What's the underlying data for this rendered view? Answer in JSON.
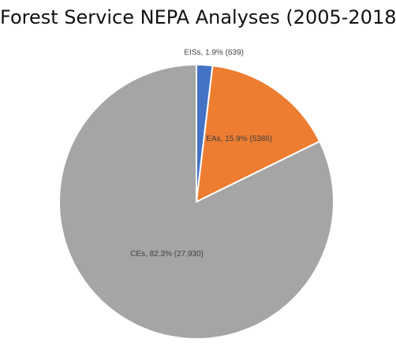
{
  "chart_data": {
    "type": "pie",
    "title": "Forest Service NEPA Analyses (2005-2018)",
    "slices": [
      {
        "name": "EISs",
        "percent": 1.9,
        "count": 639,
        "label": "EISs, 1.9% (639)",
        "color": "#4472c4"
      },
      {
        "name": "EAs",
        "percent": 15.9,
        "count": 5386,
        "label": "EAs, 15.9% (5386)",
        "color": "#ed7d31"
      },
      {
        "name": "CEs",
        "percent": 82.3,
        "count": 27930,
        "label": "CEs, 82.3% (27,930)",
        "color": "#a5a5a5"
      }
    ],
    "legend": "none",
    "start_angle": "12 o'clock",
    "direction": "clockwise"
  }
}
